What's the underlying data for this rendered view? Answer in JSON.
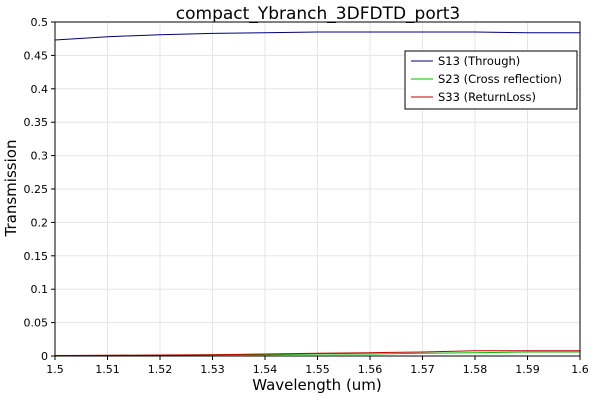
{
  "chart_data": {
    "type": "line",
    "title": "compact_Ybranch_3DFDTD_port3",
    "xlabel": "Wavelength (um)",
    "ylabel": "Transmission",
    "xlim": [
      1.5,
      1.6
    ],
    "ylim": [
      0,
      0.5
    ],
    "xticks": [
      "1.5",
      "1.51",
      "1.52",
      "1.53",
      "1.54",
      "1.55",
      "1.56",
      "1.57",
      "1.58",
      "1.59",
      "1.6"
    ],
    "yticks": [
      "0",
      "0.05",
      "0.1",
      "0.15",
      "0.2",
      "0.25",
      "0.3",
      "0.35",
      "0.4",
      "0.45",
      "0.5"
    ],
    "grid": true,
    "legend_position": "top-right",
    "x": [
      1.5,
      1.51,
      1.52,
      1.53,
      1.54,
      1.55,
      1.56,
      1.57,
      1.58,
      1.59,
      1.6
    ],
    "series": [
      {
        "name": "S13 (Through)",
        "color": "#000080",
        "values": [
          0.473,
          0.478,
          0.481,
          0.483,
          0.484,
          0.485,
          0.485,
          0.485,
          0.485,
          0.484,
          0.484
        ]
      },
      {
        "name": "S23 (Cross reflection)",
        "color": "#00c000",
        "values": [
          0.0005,
          0.0008,
          0.001,
          0.002,
          0.002,
          0.003,
          0.003,
          0.004,
          0.005,
          0.006,
          0.006
        ]
      },
      {
        "name": "S33 (ReturnLoss)",
        "color": "#c00000",
        "values": [
          0.0008,
          0.001,
          0.0015,
          0.002,
          0.003,
          0.004,
          0.005,
          0.006,
          0.008,
          0.008,
          0.008
        ]
      }
    ]
  }
}
